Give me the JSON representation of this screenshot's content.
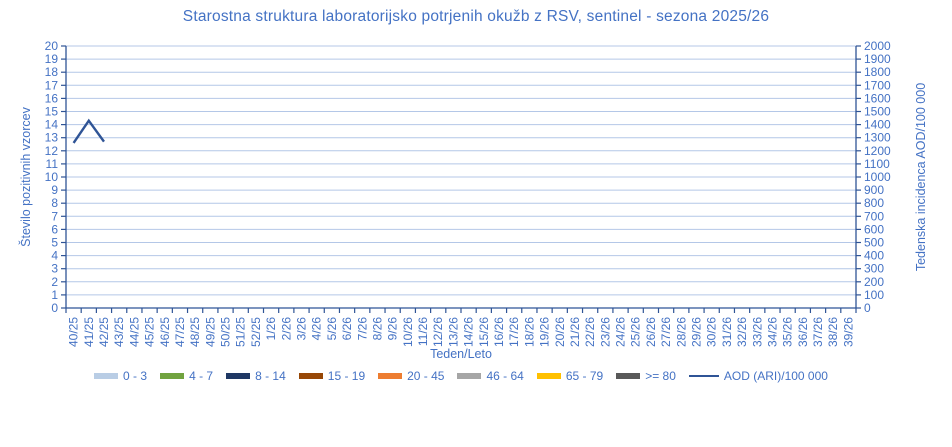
{
  "colors": {
    "title_text": "#4472C4",
    "axis_line": "#2F5496",
    "gridline": "#B4C7E7",
    "tick_label_text": "#4472C4",
    "background": "#FFFFFF"
  },
  "chart_data": {
    "type": "bar+line",
    "title": "Starostna struktura laboratorijsko potrjenih okužb z RSV, sentinel - sezona 2025/26",
    "xlabel": "Teden/Leto",
    "grid": true,
    "legend_position": "bottom",
    "categories": [
      "40/25",
      "41/25",
      "42/25",
      "43/25",
      "44/25",
      "45/25",
      "46/25",
      "47/25",
      "48/25",
      "49/25",
      "50/25",
      "51/25",
      "52/25",
      "1/26",
      "2/26",
      "3/26",
      "4/26",
      "5/26",
      "6/26",
      "7/26",
      "8/26",
      "9/26",
      "10/26",
      "11/26",
      "12/26",
      "13/26",
      "14/26",
      "15/26",
      "16/26",
      "17/26",
      "18/26",
      "19/26",
      "20/26",
      "21/26",
      "22/26",
      "23/26",
      "24/26",
      "25/26",
      "26/26",
      "27/26",
      "28/26",
      "29/26",
      "30/26",
      "31/26",
      "32/26",
      "33/26",
      "34/26",
      "35/26",
      "36/26",
      "37/26",
      "38/26",
      "39/26"
    ],
    "y_left": {
      "label": "Število pozitivnih vzorcev",
      "min": 0,
      "max": 20,
      "step": 1
    },
    "y_right": {
      "label": "Tedenska incidenca AOD/100 000",
      "min": 0,
      "max": 2000,
      "step": 100
    },
    "bar_series": [
      {
        "name": "0 - 3",
        "color": "#B9CDE5",
        "values": []
      },
      {
        "name": "4 - 7",
        "color": "#71A33F",
        "values": []
      },
      {
        "name": "8 - 14",
        "color": "#1F3864",
        "values": []
      },
      {
        "name": "15 - 19",
        "color": "#974706",
        "values": []
      },
      {
        "name": "20 - 45",
        "color": "#ED7D31",
        "values": []
      },
      {
        "name": "46 - 64",
        "color": "#A6A6A6",
        "values": []
      },
      {
        "name": "65 - 79",
        "color": "#FFC000",
        "values": []
      },
      {
        "name": ">= 80",
        "color": "#595959",
        "values": []
      }
    ],
    "bars_note": "no bars visible in plot area (all age-group counts are zero/absent for displayed weeks)",
    "line_series": {
      "name": "AOD (ARI)/100 000",
      "color": "#2F5496",
      "axis": "right",
      "x": [
        "40/25",
        "41/25",
        "42/25"
      ],
      "values": [
        1260,
        1430,
        1270
      ]
    }
  }
}
